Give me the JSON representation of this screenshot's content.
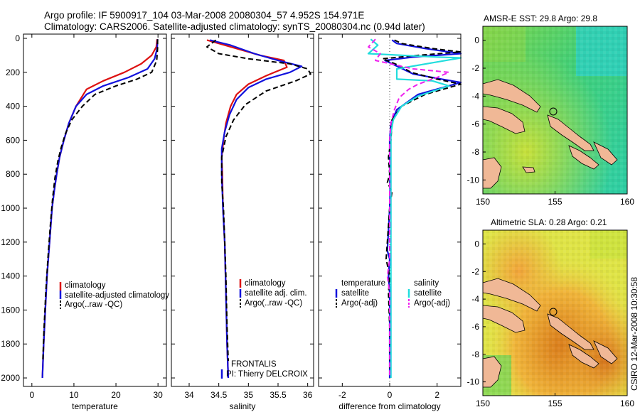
{
  "header": {
    "title_line1": "Argo profile: IF 5900917_104 03-Mar-2008 20080304_57 4.952S 154.971E",
    "title_line2": "Climatology: CARS2006. Satellite-adjusted climatology: synTS_20080304.nc (0.94d later)"
  },
  "footer": {
    "frontalis": "FRONTALIS",
    "pi": "PI: Thierry DELCROIX",
    "stamp": "CSIRO 12-Mar-2008 10:30:58"
  },
  "colors": {
    "climatology": "#dd1111",
    "satellite": "#1111dd",
    "argo": "#000000",
    "satellite_diff_sal": "#22dddd",
    "argo_adj_sal": "#ee22ee",
    "land": "#f0b896"
  },
  "chart_data": [
    {
      "type": "line",
      "xlabel": "temperature",
      "ylabel": "",
      "xlim": [
        -2,
        32
      ],
      "ylim": [
        2050,
        0
      ],
      "x_ticks": [
        "0",
        "10",
        "20",
        "30"
      ],
      "y_ticks": [
        "0",
        "200",
        "400",
        "600",
        "800",
        "1000",
        "1200",
        "1400",
        "1600",
        "1800",
        "2000"
      ],
      "series": [
        {
          "name": "climatology",
          "style": "solid",
          "color": "#dd1111",
          "points": [
            [
              29.8,
              5
            ],
            [
              29.6,
              50
            ],
            [
              28.5,
              100
            ],
            [
              26,
              150
            ],
            [
              22,
              200
            ],
            [
              17,
              250
            ],
            [
              13,
              300
            ],
            [
              10.5,
              400
            ],
            [
              8.8,
              500
            ],
            [
              7.6,
              600
            ],
            [
              6.6,
              700
            ],
            [
              5.9,
              800
            ],
            [
              5.3,
              900
            ],
            [
              4.8,
              1000
            ],
            [
              4.2,
              1200
            ],
            [
              3.6,
              1400
            ],
            [
              3.2,
              1600
            ],
            [
              2.8,
              1800
            ],
            [
              2.5,
              2000
            ]
          ]
        },
        {
          "name": "satellite-adjusted climatology",
          "style": "solid",
          "color": "#1111dd",
          "points": [
            [
              29.9,
              5
            ],
            [
              29.8,
              60
            ],
            [
              29.2,
              120
            ],
            [
              27.5,
              180
            ],
            [
              23,
              230
            ],
            [
              17,
              280
            ],
            [
              13,
              330
            ],
            [
              10.5,
              400
            ],
            [
              8.8,
              500
            ],
            [
              7.6,
              600
            ],
            [
              6.6,
              700
            ],
            [
              5.9,
              800
            ],
            [
              5.3,
              900
            ],
            [
              4.8,
              1000
            ],
            [
              4.2,
              1200
            ],
            [
              3.6,
              1400
            ],
            [
              3.2,
              1600
            ],
            [
              2.8,
              1800
            ],
            [
              2.5,
              2000
            ]
          ]
        },
        {
          "name": "Argo(..raw -QC)",
          "style": "dashed",
          "color": "#000000",
          "points": [
            [
              29.9,
              5
            ],
            [
              29.9,
              60
            ],
            [
              29.7,
              130
            ],
            [
              28.5,
              200
            ],
            [
              25,
              240
            ],
            [
              20,
              280
            ],
            [
              15,
              330
            ],
            [
              12,
              400
            ],
            [
              9.5,
              480
            ],
            [
              8,
              560
            ],
            [
              7,
              640
            ],
            [
              6.2,
              720
            ],
            [
              5.5,
              820
            ],
            [
              4.9,
              950
            ],
            [
              4.4,
              1100
            ],
            [
              3.8,
              1300
            ],
            [
              3.3,
              1500
            ],
            [
              2.9,
              1700
            ],
            [
              2.6,
              1900
            ]
          ]
        }
      ]
    },
    {
      "type": "line",
      "xlabel": "salinity",
      "ylabel": "",
      "xlim": [
        33.7,
        36.1
      ],
      "ylim": [
        2050,
        0
      ],
      "x_ticks": [
        "34",
        "34.5",
        "35",
        "35.5",
        "36"
      ],
      "series": [
        {
          "name": "climatology",
          "style": "solid",
          "color": "#dd1111",
          "points": [
            [
              34.3,
              10
            ],
            [
              34.6,
              40
            ],
            [
              35.2,
              100
            ],
            [
              35.6,
              130
            ],
            [
              35.65,
              170
            ],
            [
              35.3,
              220
            ],
            [
              35.0,
              270
            ],
            [
              34.8,
              330
            ],
            [
              34.7,
              400
            ],
            [
              34.62,
              500
            ],
            [
              34.58,
              600
            ],
            [
              34.55,
              700
            ],
            [
              34.56,
              800
            ],
            [
              34.57,
              1000
            ],
            [
              34.6,
              1200
            ],
            [
              34.62,
              1500
            ],
            [
              34.64,
              1800
            ],
            [
              34.66,
              2000
            ]
          ]
        },
        {
          "name": "satellite adj. clim.",
          "style": "solid",
          "color": "#1111dd",
          "points": [
            [
              34.35,
              10
            ],
            [
              34.7,
              40
            ],
            [
              35.1,
              90
            ],
            [
              35.5,
              130
            ],
            [
              35.9,
              165
            ],
            [
              35.7,
              200
            ],
            [
              35.3,
              240
            ],
            [
              35.0,
              290
            ],
            [
              34.8,
              360
            ],
            [
              34.68,
              450
            ],
            [
              34.6,
              550
            ],
            [
              34.55,
              650
            ],
            [
              34.55,
              800
            ],
            [
              34.57,
              1000
            ],
            [
              34.6,
              1200
            ],
            [
              34.62,
              1500
            ],
            [
              34.64,
              1800
            ],
            [
              34.66,
              2000
            ]
          ]
        },
        {
          "name": "Argo(..raw -QC)",
          "style": "dashed",
          "color": "#000000",
          "points": [
            [
              34.45,
              10
            ],
            [
              34.3,
              50
            ],
            [
              34.5,
              90
            ],
            [
              35.0,
              120
            ],
            [
              35.7,
              150
            ],
            [
              36.0,
              180
            ],
            [
              36.05,
              210
            ],
            [
              35.8,
              250
            ],
            [
              35.3,
              310
            ],
            [
              34.95,
              390
            ],
            [
              34.75,
              480
            ],
            [
              34.62,
              580
            ],
            [
              34.55,
              700
            ],
            [
              34.55,
              850
            ],
            [
              34.58,
              1000
            ],
            [
              34.6,
              1200
            ],
            [
              34.62,
              1400
            ],
            [
              34.64,
              1700
            ],
            [
              34.66,
              1900
            ]
          ]
        }
      ]
    },
    {
      "type": "line",
      "xlabel": "difference from climatology",
      "ylabel": "",
      "xlim": [
        -3,
        3
      ],
      "ylim": [
        2050,
        0
      ],
      "x_ticks": [
        "-2",
        "0",
        "2"
      ],
      "series": [
        {
          "name": "temperature satellite",
          "style": "solid",
          "color": "#1111dd",
          "points": [
            [
              0.1,
              10
            ],
            [
              0.3,
              30
            ],
            [
              1.5,
              60
            ],
            [
              3.0,
              90
            ],
            [
              1.0,
              110
            ],
            [
              -0.2,
              130
            ],
            [
              0.4,
              170
            ],
            [
              1.0,
              210
            ],
            [
              2.2,
              240
            ],
            [
              3.0,
              260
            ],
            [
              1.2,
              330
            ],
            [
              0.3,
              420
            ],
            [
              0.05,
              500
            ],
            [
              0,
              600
            ],
            [
              0,
              800
            ],
            [
              0.02,
              900
            ],
            [
              0,
              1000
            ],
            [
              -0.1,
              1250
            ],
            [
              0,
              1300
            ],
            [
              -0.05,
              1400
            ],
            [
              0,
              1500
            ],
            [
              0,
              2000
            ]
          ]
        },
        {
          "name": "temperature Argo(-adj)",
          "style": "dashed",
          "color": "#000000",
          "points": [
            [
              0.2,
              10
            ],
            [
              0.5,
              30
            ],
            [
              1.8,
              60
            ],
            [
              3.0,
              80
            ],
            [
              1.2,
              100
            ],
            [
              -0.3,
              120
            ],
            [
              0.4,
              160
            ],
            [
              0.9,
              200
            ],
            [
              2.0,
              240
            ],
            [
              3.0,
              270
            ],
            [
              1.5,
              330
            ],
            [
              0.5,
              400
            ],
            [
              0.1,
              480
            ],
            [
              0.05,
              600
            ],
            [
              -0.05,
              700
            ],
            [
              0,
              800
            ],
            [
              -0.1,
              850
            ],
            [
              0.1,
              900
            ],
            [
              0,
              1000
            ],
            [
              -0.15,
              1300
            ],
            [
              0,
              1400
            ],
            [
              -0.05,
              1500
            ],
            [
              0,
              1700
            ],
            [
              0,
              1950
            ]
          ]
        },
        {
          "name": "salinity satellite",
          "style": "solid",
          "color": "#22dddd",
          "points": [
            [
              -0.8,
              5
            ],
            [
              -0.5,
              40
            ],
            [
              -0.9,
              90
            ],
            [
              2.0,
              110
            ],
            [
              3.0,
              115
            ],
            [
              0.3,
              180
            ],
            [
              0.3,
              240
            ],
            [
              1.8,
              250
            ],
            [
              2.5,
              280
            ],
            [
              1.2,
              340
            ],
            [
              0.5,
              400
            ],
            [
              0.15,
              480
            ],
            [
              0.05,
              560
            ],
            [
              0.05,
              700
            ],
            [
              0.05,
              850
            ],
            [
              0.05,
              1000
            ],
            [
              0.05,
              1400
            ],
            [
              0.05,
              2000
            ]
          ]
        },
        {
          "name": "salinity Argo(-adj)",
          "style": "dashed",
          "color": "#ee22ee",
          "points": [
            [
              -0.6,
              5
            ],
            [
              -0.9,
              50
            ],
            [
              -0.4,
              90
            ],
            [
              -0.6,
              130
            ],
            [
              1.0,
              180
            ],
            [
              2.5,
              200
            ],
            [
              2.0,
              230
            ],
            [
              1.2,
              270
            ],
            [
              0.8,
              300
            ],
            [
              0.4,
              350
            ],
            [
              0.2,
              420
            ],
            [
              0.05,
              500
            ],
            [
              0,
              600
            ],
            [
              0,
              800
            ],
            [
              0,
              1000
            ],
            [
              0,
              1300
            ],
            [
              -0.1,
              1400
            ],
            [
              0,
              1500
            ],
            [
              0,
              1800
            ],
            [
              0,
              2000
            ]
          ]
        }
      ]
    }
  ],
  "legend1": {
    "items": [
      "climatology",
      "satellite-adjusted climatology",
      "Argo(..raw -QC)"
    ]
  },
  "legend2": {
    "items": [
      "climatology",
      "satellite adj. clim.",
      "Argo(..raw -QC)"
    ]
  },
  "legend3": {
    "head_left": "temperature",
    "head_right": "salinity",
    "left": [
      "satellite",
      "Argo(-adj)"
    ],
    "right": [
      "satellite",
      "Argo(-adj)"
    ]
  },
  "map_sst": {
    "title": "AMSR-E SST: 29.8  Argo: 29.8",
    "x_ticks": [
      "150",
      "155",
      "160"
    ],
    "y_ticks": [
      "0",
      "-2",
      "-4",
      "-6",
      "-8",
      "-10"
    ],
    "lon_range": [
      150,
      160
    ],
    "lat_range": [
      -11,
      1
    ],
    "float_lon": 154.971,
    "float_lat": -4.952
  },
  "map_sla": {
    "title": "Altimetric SLA: 0.28  Argo: 0.21",
    "x_ticks": [
      "150",
      "155",
      "160"
    ],
    "y_ticks": [
      "0",
      "-2",
      "-4",
      "-6",
      "-8",
      "-10"
    ],
    "lon_range": [
      150,
      160
    ],
    "lat_range": [
      -11,
      1
    ],
    "float_lon": 154.971,
    "float_lat": -4.952
  }
}
